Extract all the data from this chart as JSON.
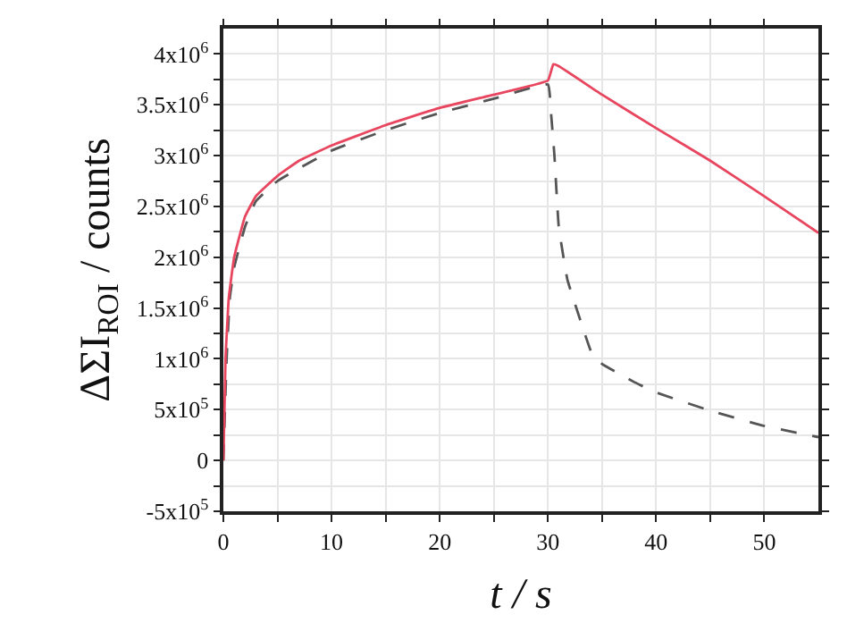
{
  "chart_data": {
    "type": "line",
    "xlabel": "t / s",
    "ylabel": "ΔΣI$_{ROI}$ / counts",
    "xlim": [
      0,
      55
    ],
    "ylim": [
      -500000,
      4250000
    ],
    "xticks": [
      0,
      {
        "value": 5,
        "label": null
      },
      10,
      {
        "value": 15,
        "label": null
      },
      20,
      {
        "value": 25,
        "label": null
      },
      30,
      {
        "value": 35,
        "label": null
      },
      40,
      {
        "value": 45,
        "label": null
      },
      50
    ],
    "yticks": [
      {
        "value": -500000,
        "label": "-5x10$^{5}$"
      },
      {
        "value": -250000,
        "label": null
      },
      0,
      {
        "value": 250000,
        "label": null
      },
      {
        "value": 500000,
        "label": "5x10$^{5}$"
      },
      {
        "value": 750000,
        "label": null
      },
      {
        "value": 1000000,
        "label": "1x10$^{6}$"
      },
      {
        "value": 1250000,
        "label": null
      },
      {
        "value": 1500000,
        "label": "1.5x10$^{6}$"
      },
      {
        "value": 1750000,
        "label": null
      },
      {
        "value": 2000000,
        "label": "2x10$^{6}$"
      },
      {
        "value": 2250000,
        "label": null
      },
      {
        "value": 2500000,
        "label": "2.5x10$^{6}$"
      },
      {
        "value": 2750000,
        "label": null
      },
      {
        "value": 3000000,
        "label": "3x10$^{6}$"
      },
      {
        "value": 3250000,
        "label": null
      },
      {
        "value": 3500000,
        "label": "3.5x10$^{6}$"
      },
      {
        "value": 3750000,
        "label": null
      },
      {
        "value": 4000000,
        "label": "4x10$^{6}$"
      }
    ],
    "grid": true,
    "marker": "none",
    "series": [
      {
        "color": "#555555",
        "line_style": "dashed",
        "x": [
          0,
          0.3,
          0.6,
          1,
          2,
          3,
          5,
          10,
          15,
          20,
          25,
          30,
          30.3,
          30.6,
          31,
          31.8,
          33.4,
          34,
          35,
          38,
          40,
          45,
          50,
          55
        ],
        "values": [
          0,
          1000000,
          1600000,
          1900000,
          2300000,
          2550000,
          2750000,
          3050000,
          3250000,
          3420000,
          3560000,
          3700000,
          3400000,
          3000000,
          2300000,
          1780000,
          1250000,
          1070000,
          950000,
          770000,
          670000,
          490000,
          340000,
          230000
        ]
      },
      {
        "color": "#e8455f",
        "line_style": "solid",
        "x": [
          0,
          0.2,
          0.5,
          1,
          2,
          3,
          5,
          7,
          10,
          15,
          20,
          25,
          30,
          30.5,
          31,
          35,
          40,
          45,
          50,
          55
        ],
        "values": [
          0,
          1000000,
          1600000,
          2000000,
          2400000,
          2600000,
          2800000,
          2950000,
          3100000,
          3300000,
          3470000,
          3600000,
          3740000,
          3900000,
          3880000,
          3600000,
          3270000,
          2950000,
          2600000,
          2240000
        ]
      }
    ]
  }
}
